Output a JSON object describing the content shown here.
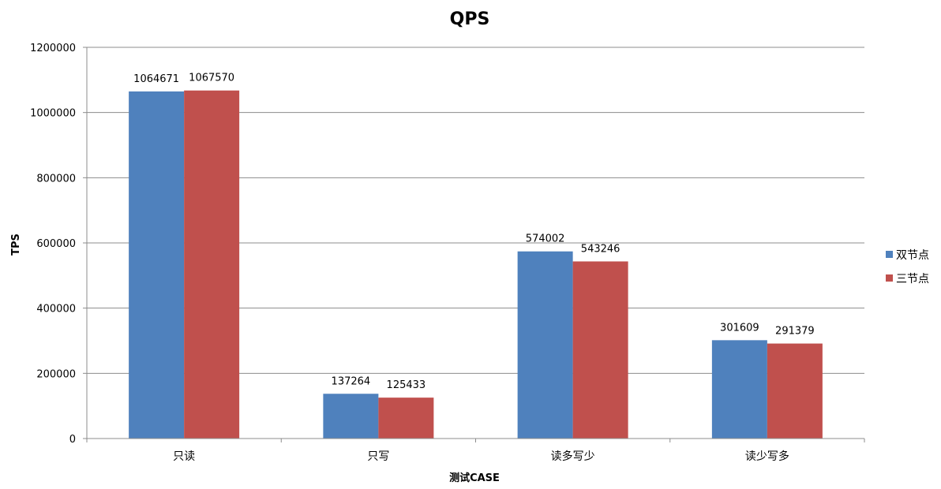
{
  "chart_data": {
    "type": "bar",
    "title": "QPS",
    "xlabel": "测试CASE",
    "ylabel": "TPS",
    "categories": [
      "只读",
      "只写",
      "读多写少",
      "读少写多"
    ],
    "series": [
      {
        "name": "双节点",
        "color": "#4F81BD",
        "values": [
          1064671,
          137264,
          574002,
          301609
        ]
      },
      {
        "name": "三节点",
        "color": "#C0504D",
        "values": [
          1067570,
          125433,
          543246,
          291379
        ]
      }
    ],
    "ylim": [
      0,
      1200000
    ],
    "yticks": [
      0,
      200000,
      400000,
      600000,
      800000,
      1000000,
      1200000
    ],
    "grid": true,
    "legend": "right",
    "data_labels": true
  }
}
